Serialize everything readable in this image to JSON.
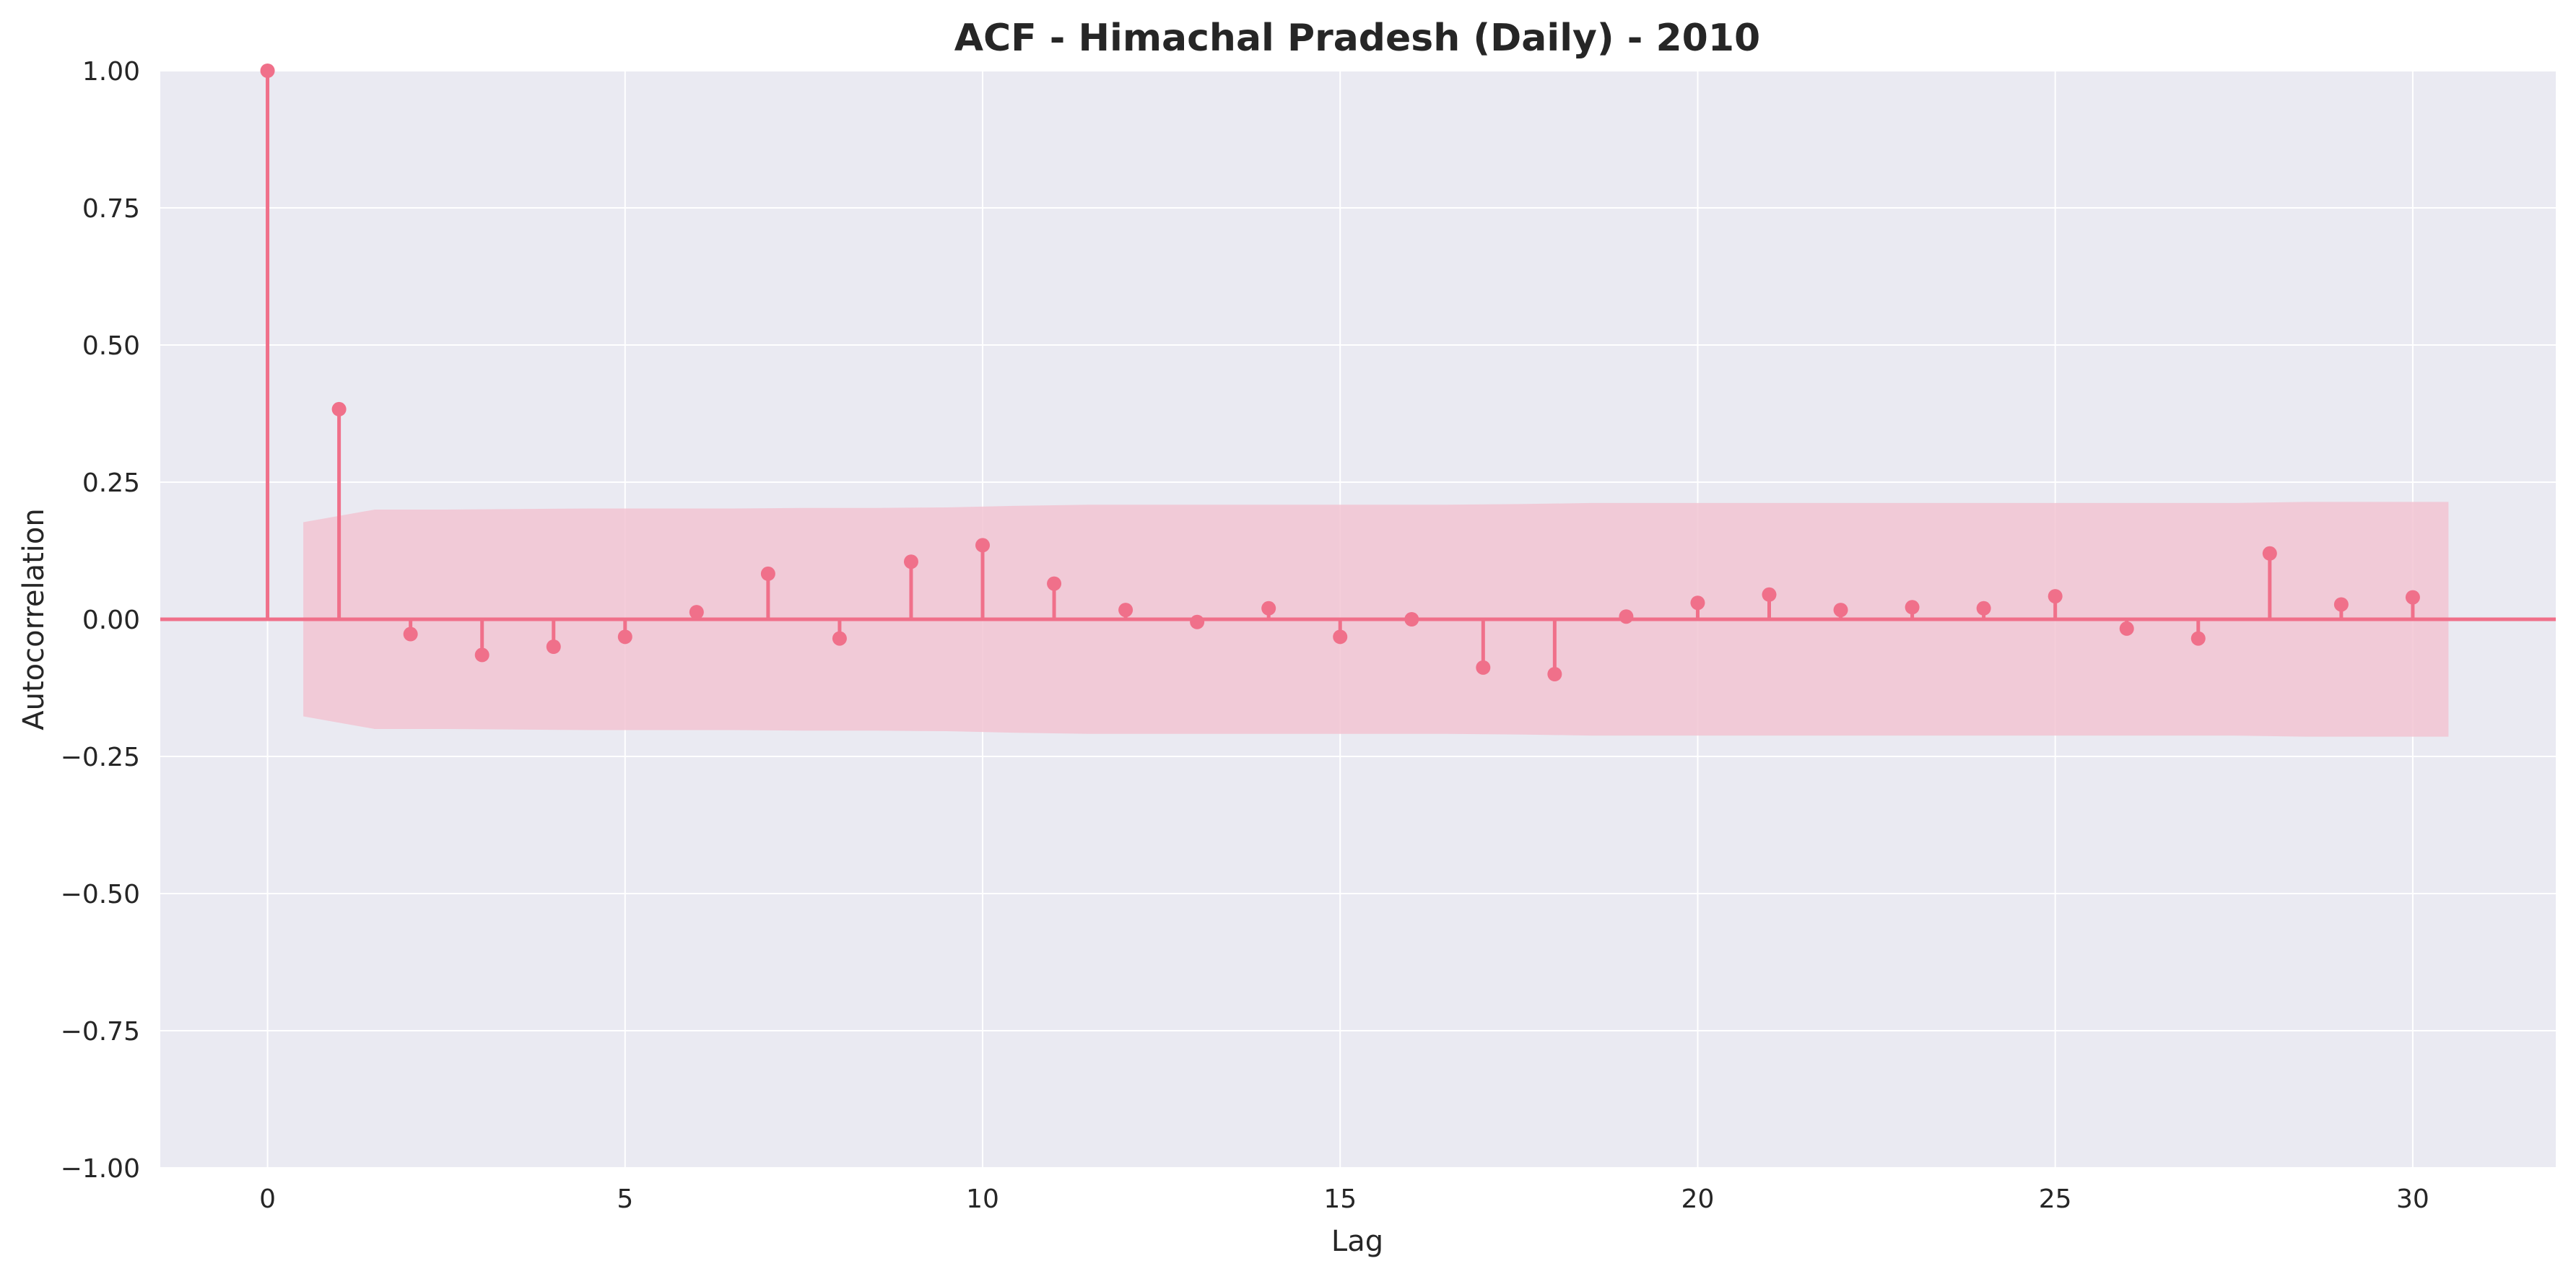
{
  "chart_data": {
    "type": "stem",
    "title": "ACF - Himachal Pradesh (Daily) - 2010",
    "xlabel": "Lag",
    "ylabel": "Autocorrelation",
    "xlim": [
      -1.5,
      32
    ],
    "ylim": [
      -1.0,
      1.0
    ],
    "xticks": [
      0,
      5,
      10,
      15,
      20,
      25,
      30
    ],
    "xtick_labels": [
      "0",
      "5",
      "10",
      "15",
      "20",
      "25",
      "30"
    ],
    "yticks": [
      1.0,
      0.75,
      0.5,
      0.25,
      0.0,
      -0.25,
      -0.5,
      -0.75,
      -1.0
    ],
    "ytick_labels": [
      "1.00",
      "0.75",
      "0.50",
      "0.25",
      "0.00",
      "−0.25",
      "−0.50",
      "−0.75",
      "−1.00"
    ],
    "grid": true,
    "colors": {
      "stem": "#f0708a",
      "band": "#f2c4d2",
      "background": "#eaeaf2",
      "grid": "#ffffff"
    },
    "lags": [
      0,
      1,
      2,
      3,
      4,
      5,
      6,
      7,
      8,
      9,
      10,
      11,
      12,
      13,
      14,
      15,
      16,
      17,
      18,
      19,
      20,
      21,
      22,
      23,
      24,
      25,
      26,
      27,
      28,
      29,
      30
    ],
    "values": [
      1.0,
      0.383,
      -0.027,
      -0.065,
      -0.05,
      -0.032,
      0.013,
      0.083,
      -0.035,
      0.105,
      0.135,
      0.065,
      0.017,
      -0.005,
      0.02,
      -0.032,
      0.0,
      -0.088,
      -0.1,
      0.005,
      0.03,
      0.045,
      0.017,
      0.022,
      0.02,
      0.042,
      -0.017,
      -0.035,
      0.12,
      0.027,
      0.04
    ],
    "confint": {
      "x": [
        0.5,
        1.5,
        2.5,
        3.5,
        4.5,
        5.5,
        6.5,
        7.5,
        8.5,
        9.5,
        10.5,
        11.5,
        12.5,
        13.5,
        14.5,
        15.5,
        16.5,
        17.5,
        18.5,
        19.5,
        20.5,
        21.5,
        22.5,
        23.5,
        24.5,
        25.5,
        26.5,
        27.5,
        28.5,
        29.5,
        30.5
      ],
      "upper": [
        0.177,
        0.2,
        0.2,
        0.201,
        0.202,
        0.202,
        0.202,
        0.203,
        0.203,
        0.204,
        0.207,
        0.209,
        0.209,
        0.209,
        0.209,
        0.209,
        0.209,
        0.21,
        0.212,
        0.212,
        0.212,
        0.212,
        0.212,
        0.212,
        0.212,
        0.212,
        0.212,
        0.212,
        0.214,
        0.214,
        0.214
      ],
      "lower": [
        -0.177,
        -0.2,
        -0.2,
        -0.201,
        -0.202,
        -0.202,
        -0.202,
        -0.203,
        -0.203,
        -0.204,
        -0.207,
        -0.209,
        -0.209,
        -0.209,
        -0.209,
        -0.209,
        -0.209,
        -0.21,
        -0.212,
        -0.212,
        -0.212,
        -0.212,
        -0.212,
        -0.212,
        -0.212,
        -0.212,
        -0.212,
        -0.212,
        -0.214,
        -0.214,
        -0.214
      ]
    }
  }
}
